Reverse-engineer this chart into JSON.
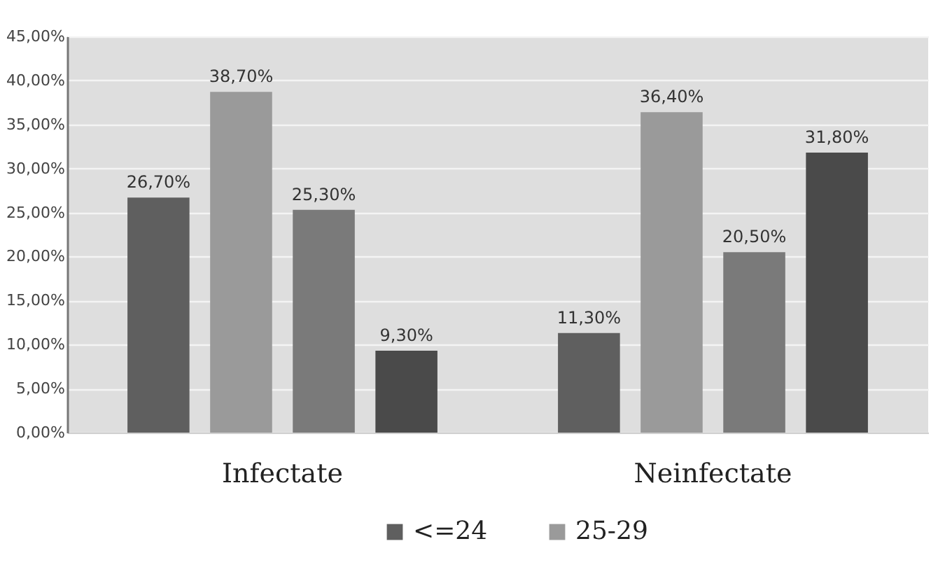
{
  "chart_data": {
    "type": "bar",
    "categories": [
      "Infectate",
      "Neinfectate"
    ],
    "series": [
      {
        "name": "<=24",
        "color": "#5f5f5f",
        "values": [
          26.7,
          11.3
        ],
        "value_labels": [
          "26,70%",
          "11,30%"
        ]
      },
      {
        "name": "25-29",
        "color": "#9a9a9a",
        "values": [
          38.7,
          36.4
        ],
        "value_labels": [
          "38,70%",
          "36,40%"
        ]
      },
      {
        "color": "#7a7a7a",
        "values": [
          25.3,
          20.5
        ],
        "value_labels": [
          "25,30%",
          "20,50%"
        ]
      },
      {
        "color": "#4a4a4a",
        "values": [
          9.3,
          31.8
        ],
        "value_labels": [
          "9,30%",
          "31,80%"
        ]
      }
    ],
    "ylim": [
      0,
      45
    ],
    "yticks": [
      {
        "value": 0,
        "label": "0,00%"
      },
      {
        "value": 5,
        "label": "5,00%"
      },
      {
        "value": 10,
        "label": "10,00%"
      },
      {
        "value": 15,
        "label": "15,00%"
      },
      {
        "value": 20,
        "label": "20,00%"
      },
      {
        "value": 25,
        "label": "25,00%"
      },
      {
        "value": 30,
        "label": "30,00%"
      },
      {
        "value": 35,
        "label": "35,00%"
      },
      {
        "value": 40,
        "label": "40,00%"
      },
      {
        "value": 45,
        "label": "45,00%"
      }
    ],
    "grid": "y",
    "legend": "bottom"
  }
}
